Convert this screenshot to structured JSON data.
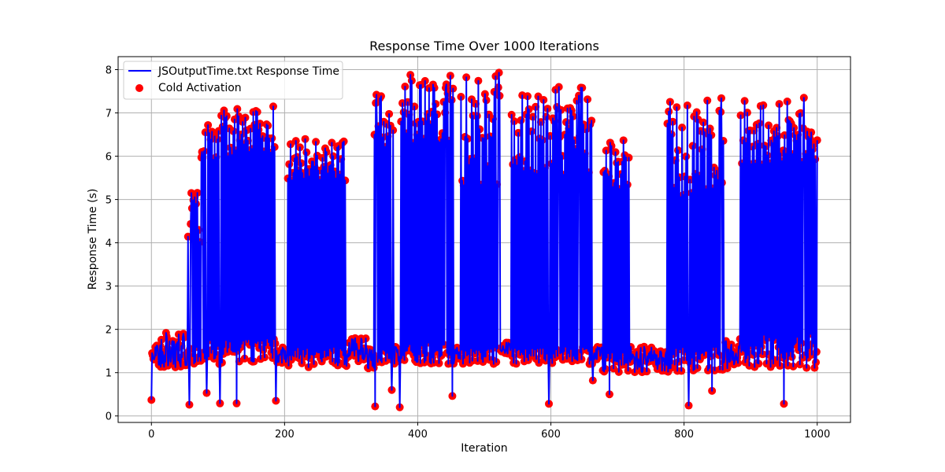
{
  "chart_data": {
    "type": "line",
    "title": "Response Time Over 1000 Iterations",
    "xlabel": "Iteration",
    "ylabel": "Response Time (s)",
    "xlim": [
      -50,
      1050
    ],
    "ylim": [
      -0.15,
      8.3
    ],
    "xticks": [
      0,
      200,
      400,
      600,
      800,
      1000
    ],
    "yticks": [
      0,
      1,
      2,
      3,
      4,
      5,
      6,
      7,
      8
    ],
    "grid": true,
    "legend_position": "top-left",
    "series": [
      {
        "name": "JSOutputTime.txt Response Time",
        "kind": "line",
        "color": "#0000ff"
      },
      {
        "name": "Cold Activation",
        "kind": "scatter",
        "color": "#ff0000"
      }
    ],
    "segments": [
      {
        "from": 0,
        "to": 10,
        "low": [
          1.3,
          1.7
        ],
        "high": null
      },
      {
        "from": 10,
        "to": 55,
        "low": [
          1.1,
          1.9
        ],
        "high": null
      },
      {
        "from": 55,
        "to": 75,
        "low": [
          1.2,
          1.6
        ],
        "high": [
          4.0,
          5.2
        ]
      },
      {
        "from": 75,
        "to": 105,
        "low": [
          1.2,
          1.8
        ],
        "high": [
          5.9,
          6.7
        ]
      },
      {
        "from": 105,
        "to": 188,
        "low": [
          1.2,
          1.8
        ],
        "high": [
          6.0,
          7.1
        ]
      },
      {
        "from": 188,
        "to": 205,
        "low": [
          1.2,
          1.6
        ],
        "high": null
      },
      {
        "from": 205,
        "to": 292,
        "low": [
          1.1,
          1.6
        ],
        "high": [
          5.4,
          6.4
        ]
      },
      {
        "from": 292,
        "to": 335,
        "low": [
          1.1,
          1.8
        ],
        "high": null
      },
      {
        "from": 335,
        "to": 365,
        "low": [
          1.2,
          1.6
        ],
        "high": [
          6.1,
          7.4
        ]
      },
      {
        "from": 365,
        "to": 375,
        "low": [
          1.2,
          1.6
        ],
        "high": null
      },
      {
        "from": 375,
        "to": 455,
        "low": [
          1.2,
          1.7
        ],
        "high": [
          6.3,
          7.9
        ]
      },
      {
        "from": 455,
        "to": 465,
        "low": [
          1.3,
          1.6
        ],
        "high": null
      },
      {
        "from": 465,
        "to": 525,
        "low": [
          1.2,
          1.6
        ],
        "high": [
          5.3,
          7.9
        ]
      },
      {
        "from": 525,
        "to": 540,
        "low": [
          1.4,
          1.7
        ],
        "high": null
      },
      {
        "from": 540,
        "to": 665,
        "low": [
          1.2,
          1.6
        ],
        "high": [
          5.5,
          7.6
        ]
      },
      {
        "from": 665,
        "to": 678,
        "low": [
          1.3,
          1.6
        ],
        "high": null
      },
      {
        "from": 678,
        "to": 718,
        "low": [
          1.0,
          1.5
        ],
        "high": [
          5.2,
          6.4
        ]
      },
      {
        "from": 718,
        "to": 775,
        "low": [
          1.0,
          1.6
        ],
        "high": null
      },
      {
        "from": 775,
        "to": 860,
        "low": [
          1.0,
          1.6
        ],
        "high": [
          5.0,
          7.3
        ]
      },
      {
        "from": 860,
        "to": 885,
        "low": [
          1.1,
          1.8
        ],
        "high": null
      },
      {
        "from": 885,
        "to": 1000,
        "low": [
          1.1,
          1.9
        ],
        "high": [
          5.8,
          7.3
        ]
      }
    ],
    "notable_points": [
      {
        "x": 0,
        "y": 0.37
      },
      {
        "x": 57,
        "y": 0.26
      },
      {
        "x": 83,
        "y": 0.53
      },
      {
        "x": 103,
        "y": 0.29
      },
      {
        "x": 128,
        "y": 0.29
      },
      {
        "x": 187,
        "y": 0.35
      },
      {
        "x": 336,
        "y": 0.22
      },
      {
        "x": 361,
        "y": 0.6
      },
      {
        "x": 373,
        "y": 0.2
      },
      {
        "x": 452,
        "y": 0.46
      },
      {
        "x": 597,
        "y": 0.28
      },
      {
        "x": 663,
        "y": 0.82
      },
      {
        "x": 688,
        "y": 0.5
      },
      {
        "x": 807,
        "y": 0.24
      },
      {
        "x": 842,
        "y": 0.58
      },
      {
        "x": 950,
        "y": 0.28
      },
      {
        "x": 22,
        "y": 1.92
      },
      {
        "x": 48,
        "y": 1.9
      },
      {
        "x": 60,
        "y": 5.15
      },
      {
        "x": 76,
        "y": 6.1
      },
      {
        "x": 85,
        "y": 6.72
      },
      {
        "x": 183,
        "y": 7.15
      },
      {
        "x": 338,
        "y": 7.42
      },
      {
        "x": 389,
        "y": 7.88
      },
      {
        "x": 425,
        "y": 7.58
      },
      {
        "x": 442,
        "y": 7.58
      },
      {
        "x": 522,
        "y": 7.93
      },
      {
        "x": 612,
        "y": 7.6
      },
      {
        "x": 642,
        "y": 7.4
      },
      {
        "x": 856,
        "y": 7.34
      },
      {
        "x": 980,
        "y": 7.35
      },
      {
        "x": 1000,
        "y": 6.37
      },
      {
        "x": 999,
        "y": 1.48
      }
    ]
  }
}
